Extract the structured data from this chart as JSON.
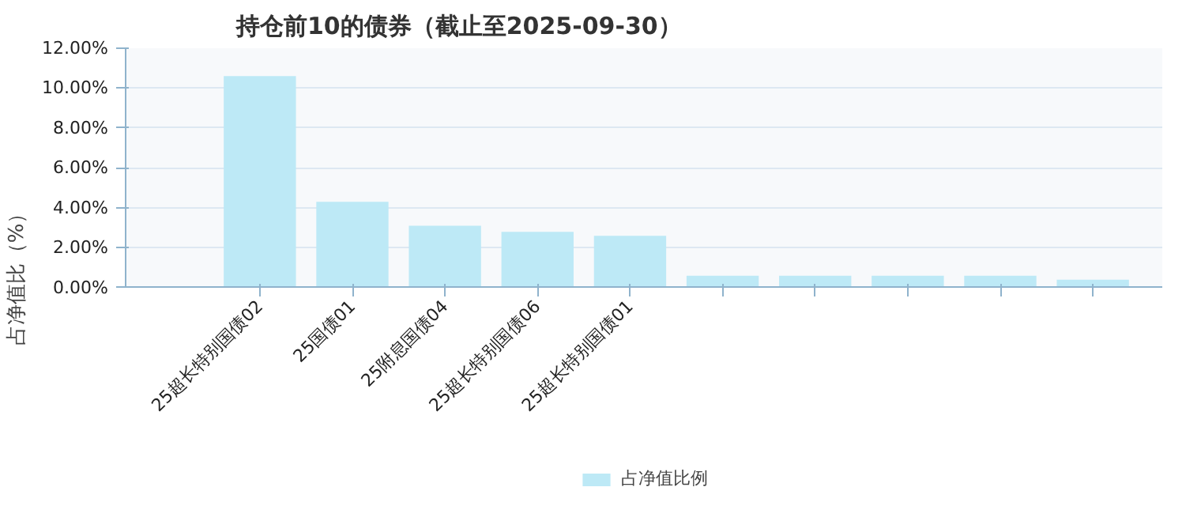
{
  "chart_data": {
    "type": "bar",
    "title": "持仓前10的债券（截止至2025-09-30）",
    "ylabel": "占净值比（%）",
    "categories": [
      "25超长特别国债02",
      "25国债01",
      "25附息国债04",
      "25超长特别国债06",
      "25超长特别国债01",
      null,
      null,
      null,
      null,
      null
    ],
    "series": [
      {
        "name": "占净值比例",
        "color": "#bde9f6",
        "values": [
          10.6,
          4.3,
          3.1,
          2.8,
          2.6,
          0.6,
          0.6,
          0.6,
          0.6,
          0.4
        ]
      }
    ],
    "ylim": [
      0,
      12
    ],
    "yticks": [
      {
        "value": 0,
        "label": "0.00%"
      },
      {
        "value": 2,
        "label": "2.00%"
      },
      {
        "value": 4,
        "label": "4.00%"
      },
      {
        "value": 6,
        "label": "6.00%"
      },
      {
        "value": 8,
        "label": "8.00%"
      },
      {
        "value": 10,
        "label": "10.00%"
      },
      {
        "value": 12,
        "label": "12.00%"
      }
    ],
    "grid": "y",
    "legend": "bottom"
  }
}
